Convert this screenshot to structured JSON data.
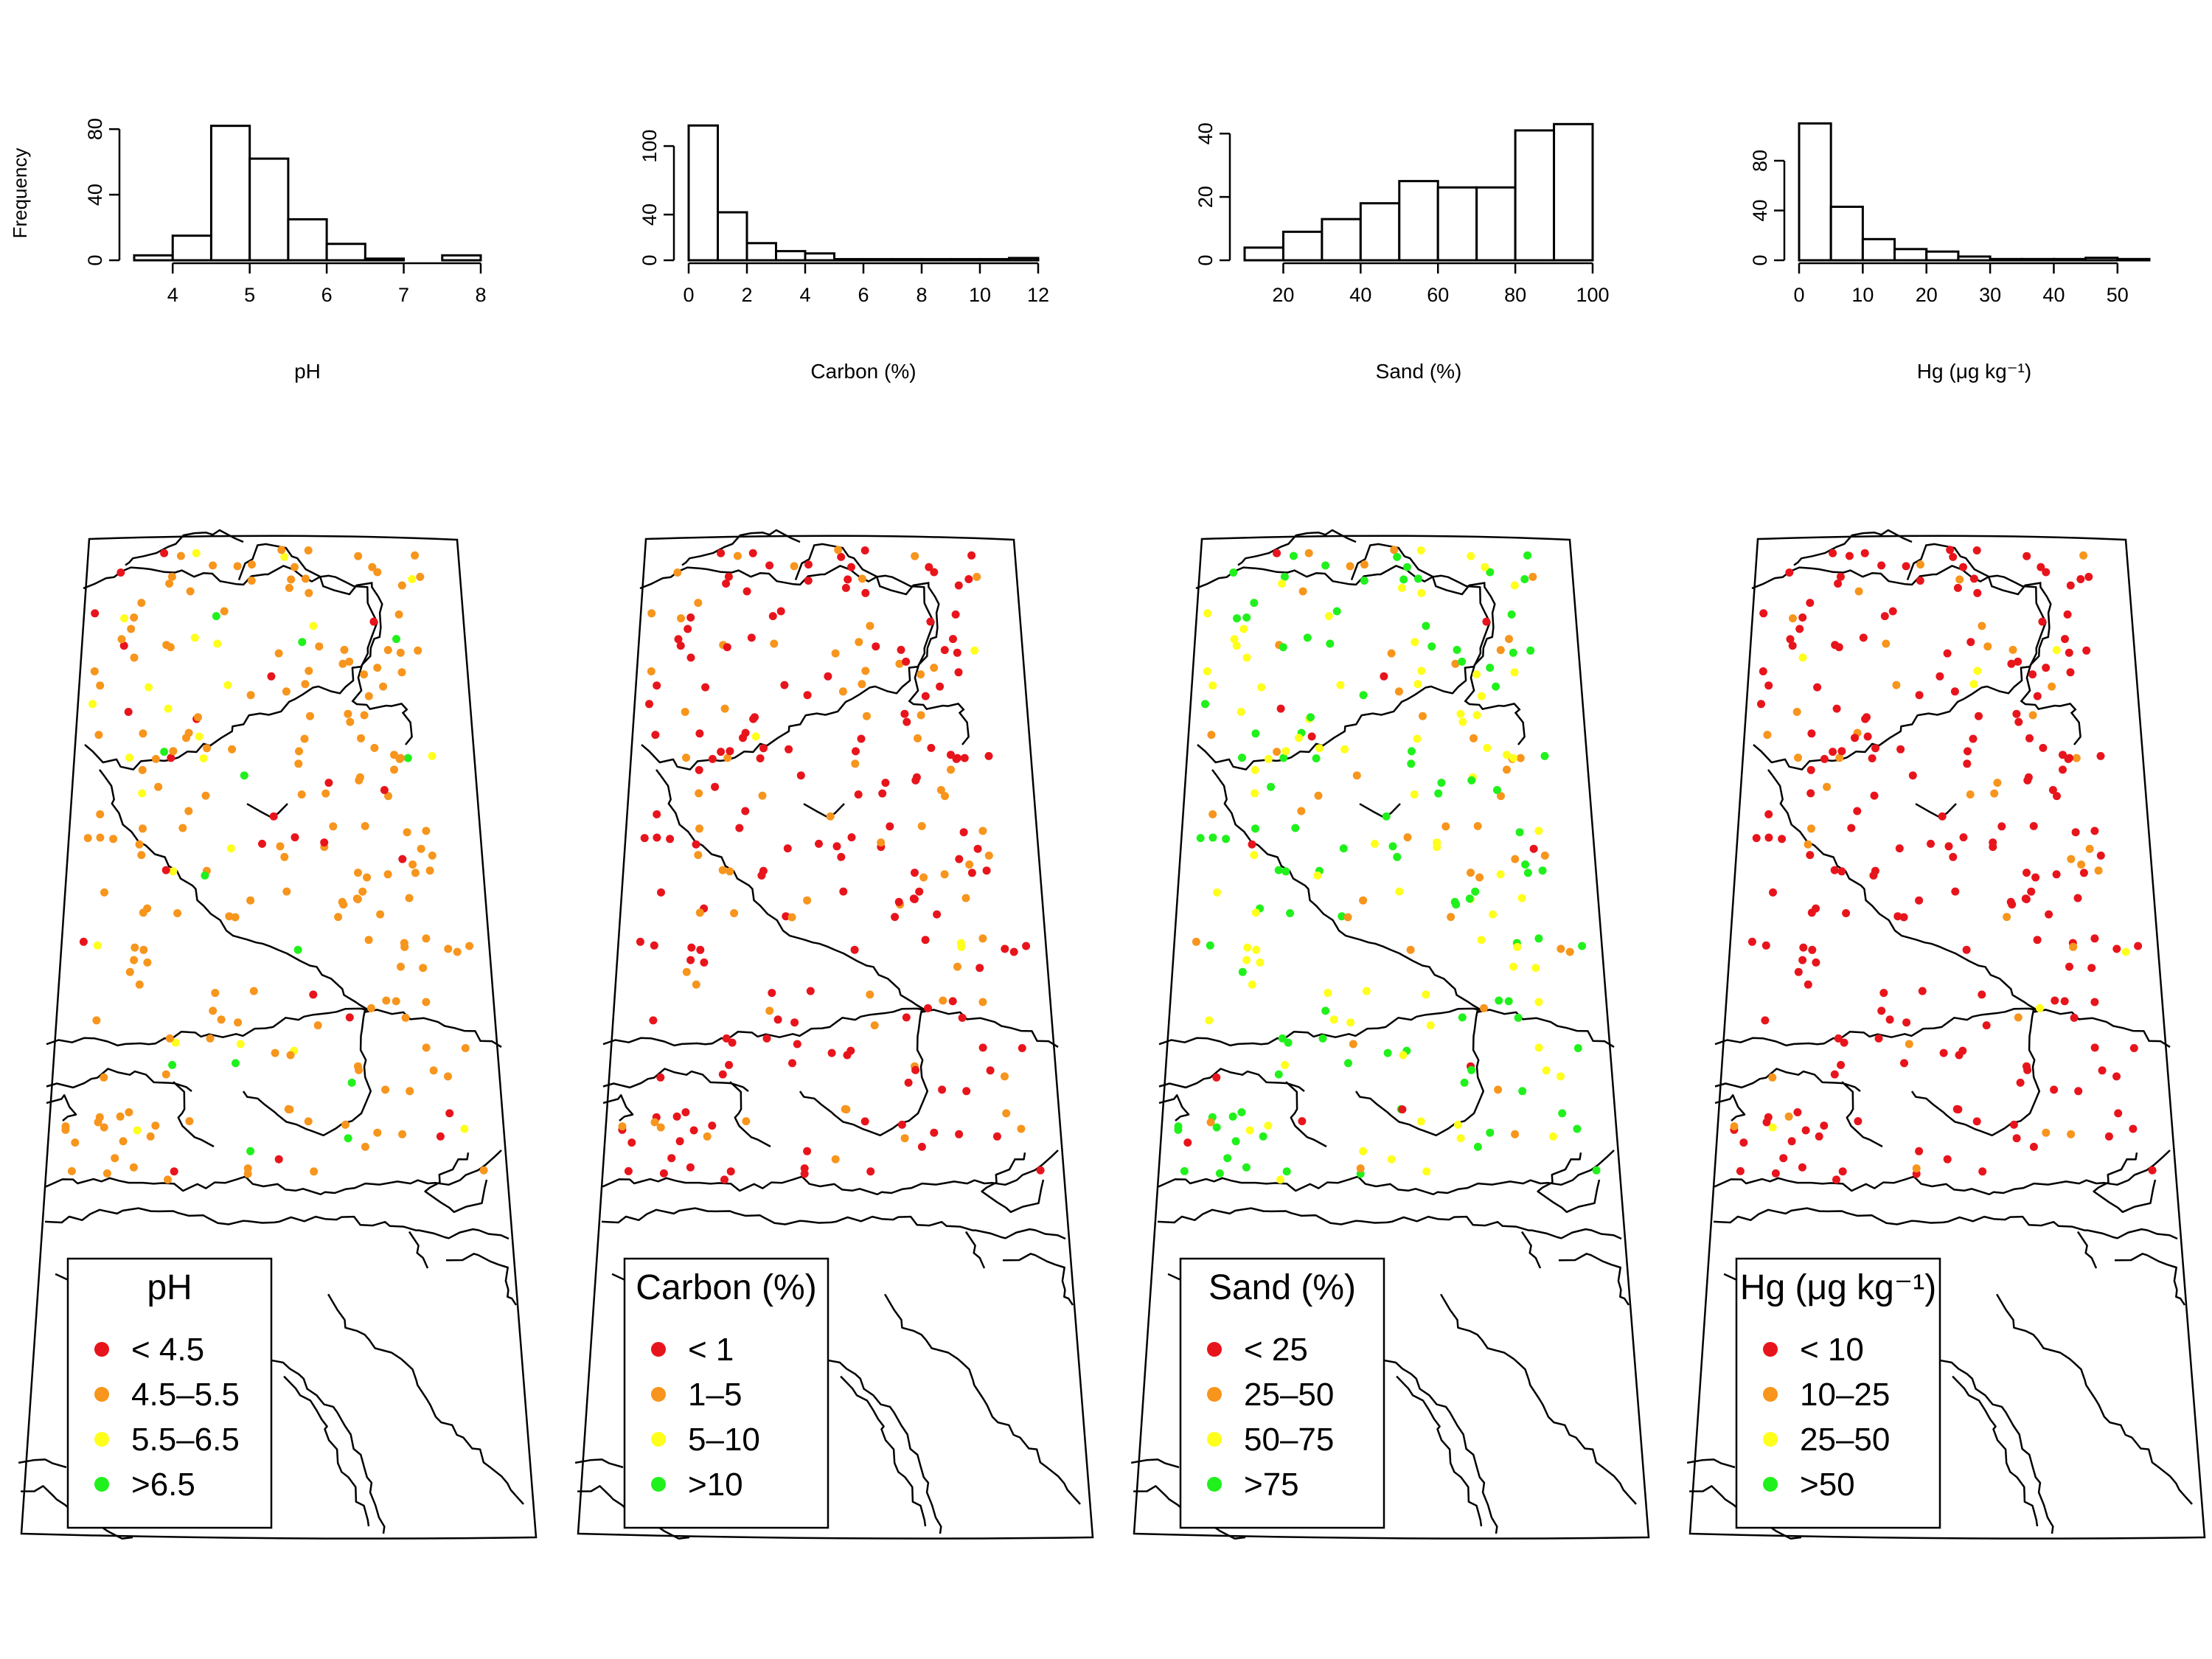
{
  "colors": {
    "red": "#e8141c",
    "orange": "#f7951c",
    "yellow": "#ffff1c",
    "green": "#20f11c"
  },
  "hist_ylabel": "Frequency",
  "chart_data": [
    {
      "type": "bar",
      "title": "",
      "xlabel": "pH",
      "ylabel": "Frequency",
      "bin_edges": [
        3.5,
        4.0,
        4.5,
        5.0,
        5.5,
        6.0,
        6.5,
        7.0,
        7.5,
        8.0
      ],
      "values": [
        3,
        15,
        82,
        62,
        25,
        10,
        1,
        0,
        3
      ],
      "xlim": [
        3.5,
        8.0
      ],
      "ylim": [
        0,
        85
      ],
      "xticks": [
        "4",
        "5",
        "6",
        "7",
        "8"
      ],
      "yticks": [
        "0",
        "40",
        "80"
      ]
    },
    {
      "type": "bar",
      "title": "",
      "xlabel": "Carbon (%)",
      "ylabel": "",
      "bin_edges": [
        0,
        1,
        2,
        3,
        4,
        5,
        6,
        7,
        8,
        9,
        10,
        11,
        12
      ],
      "values": [
        118,
        42,
        15,
        8,
        6,
        1,
        1,
        1,
        1,
        1,
        1,
        2
      ],
      "xlim": [
        0,
        12
      ],
      "ylim": [
        0,
        122
      ],
      "xticks": [
        "0",
        "2",
        "4",
        "6",
        "8",
        "10",
        "12"
      ],
      "yticks": [
        "0",
        "40",
        "100"
      ]
    },
    {
      "type": "bar",
      "title": "",
      "xlabel": "Sand (%)",
      "ylabel": "",
      "bin_edges": [
        10,
        20,
        30,
        40,
        50,
        60,
        70,
        80,
        90,
        100
      ],
      "values": [
        4,
        9,
        13,
        18,
        25,
        23,
        23,
        41,
        43
      ],
      "xlim": [
        10,
        100
      ],
      "ylim": [
        0,
        44
      ],
      "xticks": [
        "20",
        "40",
        "60",
        "80",
        "100"
      ],
      "yticks": [
        "0",
        "20",
        "40"
      ]
    },
    {
      "type": "bar",
      "title": "",
      "xlabel": "Hg (μg kg⁻¹)",
      "ylabel": "",
      "bin_edges": [
        0,
        5,
        10,
        15,
        20,
        25,
        30,
        35,
        40,
        45,
        50,
        55
      ],
      "values": [
        110,
        43,
        17,
        9,
        7,
        3,
        1,
        1,
        1,
        2,
        1
      ],
      "xlim": [
        0,
        55
      ],
      "ylim": [
        0,
        112
      ],
      "xticks": [
        "0",
        "10",
        "20",
        "30",
        "40",
        "50"
      ],
      "yticks": [
        "0",
        "40",
        "80"
      ]
    }
  ],
  "maps": [
    {
      "legend_title": "pH",
      "legend": [
        "< 4.5",
        "4.5–5.5",
        "5.5–6.5",
        ">6.5"
      ],
      "mix": [
        0.1,
        0.74,
        0.13,
        0.03
      ]
    },
    {
      "legend_title": "Carbon (%)",
      "legend": [
        "< 1",
        "1–5",
        "5–10",
        ">10"
      ],
      "mix": [
        0.68,
        0.3,
        0.02,
        0.0
      ]
    },
    {
      "legend_title": "Sand (%)",
      "legend": [
        "< 25",
        "25–50",
        "50–75",
        ">75"
      ],
      "mix": [
        0.05,
        0.17,
        0.36,
        0.42
      ]
    },
    {
      "legend_title": "Hg (μg kg⁻¹)",
      "legend": [
        "< 10",
        "10–25",
        "25–50",
        ">50"
      ],
      "mix": [
        0.76,
        0.17,
        0.06,
        0.01
      ]
    }
  ]
}
